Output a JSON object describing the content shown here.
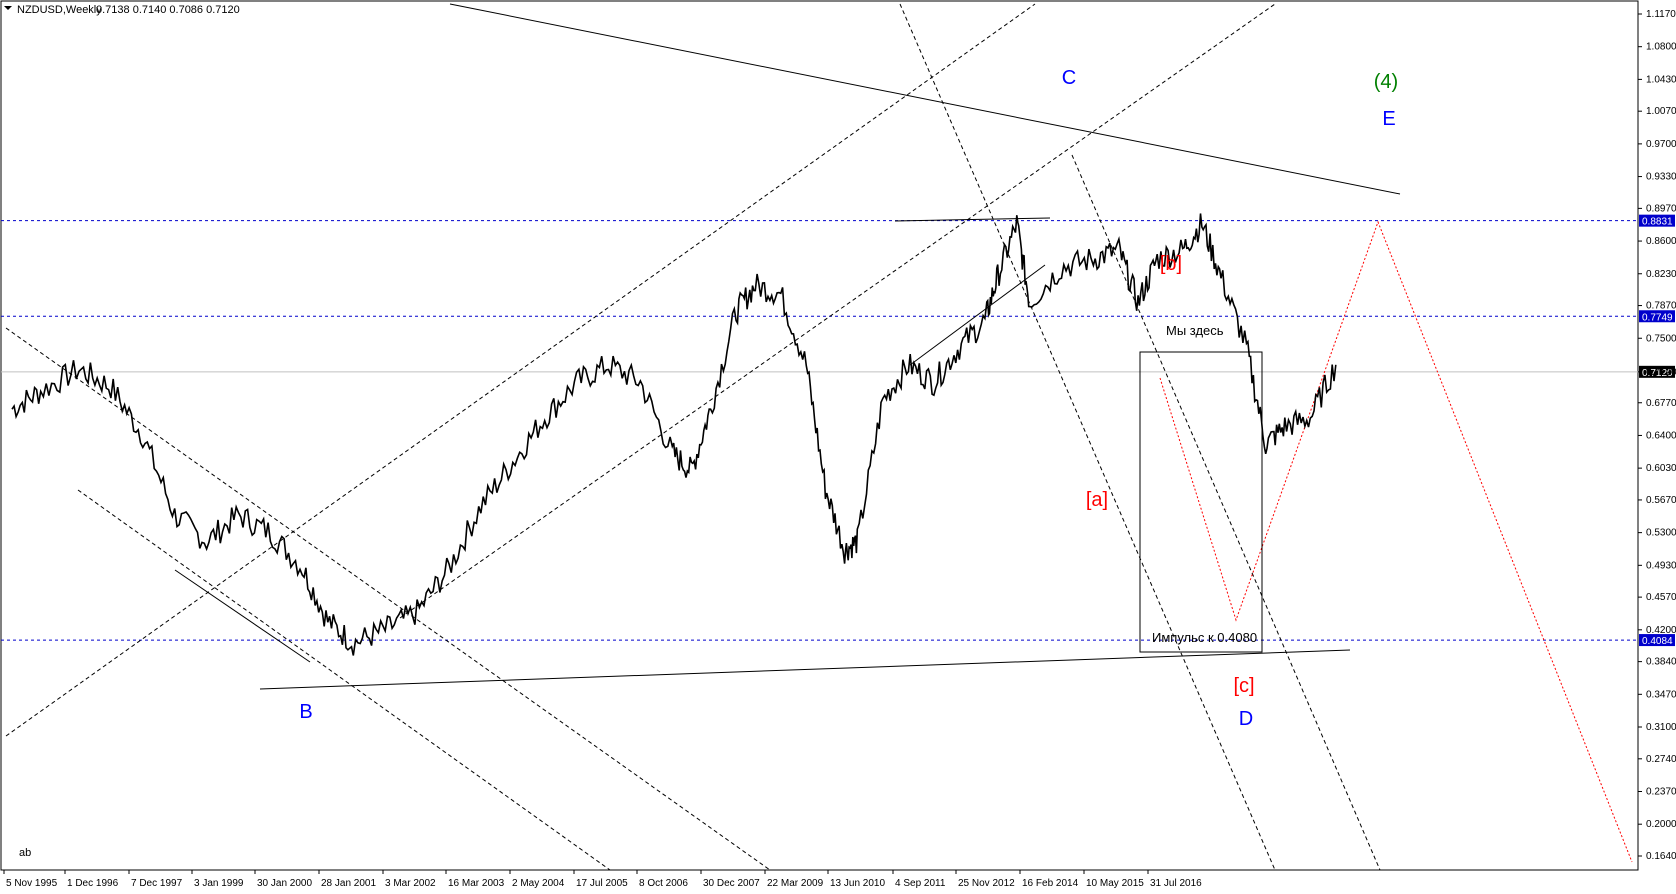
{
  "header": {
    "symbol": "NZDUSD,Weekly",
    "ohlc": "0.7138 0.7140 0.7086 0.7120"
  },
  "footer": {
    "tag": "ab"
  },
  "chart_data": {
    "type": "line",
    "title": "NZDUSD,Weekly",
    "ylim": [
      0.164,
      1.13
    ],
    "y_ticks": [
      "1.1170",
      "1.0800",
      "1.0430",
      "1.0070",
      "0.9700",
      "0.9330",
      "0.8970",
      "0.8600",
      "0.8230",
      "0.7870",
      "0.7500",
      "0.7120",
      "0.6770",
      "0.6400",
      "0.6030",
      "0.5670",
      "0.5300",
      "0.4930",
      "0.4570",
      "0.4200",
      "0.3840",
      "0.3470",
      "0.3100",
      "0.2740",
      "0.2370",
      "0.2000",
      "0.1640"
    ],
    "x_ticks": [
      "5 Nov 1995",
      "1 Dec 1996",
      "7 Dec 1997",
      "3 Jan 1999",
      "30 Jan 2000",
      "28 Jan 2001",
      "3 Mar 2002",
      "16 Mar 2003",
      "2 May 2004",
      "17 Jul 2005",
      "8 Oct 2006",
      "30 Dec 2007",
      "22 Mar 2009",
      "13 Jun 2010",
      "4 Sep 2011",
      "25 Nov 2012",
      "16 Feb 2014",
      "10 May 2015",
      "31 Jul 2016"
    ],
    "price_series": {
      "name": "NZDUSD",
      "x": [
        1995.85,
        1996.3,
        1996.9,
        1997.4,
        1997.9,
        1998.4,
        1998.9,
        1999.4,
        1999.9,
        2000.4,
        2000.8,
        2001.2,
        2001.7,
        2002.2,
        2002.7,
        2003.2,
        2003.7,
        2004.2,
        2004.7,
        2005.2,
        2005.7,
        2006.2,
        2006.5,
        2006.8,
        2007.2,
        2007.5,
        2007.9,
        2008.3,
        2008.6,
        2008.9,
        2009.1,
        2009.5,
        2009.9,
        2010.3,
        2010.7,
        2011.1,
        2011.3,
        2011.6,
        2011.8,
        2012.3,
        2012.8,
        2013.2,
        2013.5,
        2013.8,
        2014.2,
        2014.5,
        2014.8,
        2015.2,
        2015.5,
        2015.8,
        2016.2,
        2016.6
      ],
      "y": [
        0.67,
        0.69,
        0.715,
        0.695,
        0.64,
        0.55,
        0.52,
        0.55,
        0.53,
        0.49,
        0.43,
        0.405,
        0.42,
        0.44,
        0.49,
        0.56,
        0.61,
        0.66,
        0.7,
        0.72,
        0.7,
        0.62,
        0.6,
        0.67,
        0.78,
        0.81,
        0.8,
        0.72,
        0.58,
        0.51,
        0.52,
        0.68,
        0.72,
        0.7,
        0.74,
        0.77,
        0.82,
        0.88,
        0.79,
        0.83,
        0.84,
        0.85,
        0.79,
        0.84,
        0.85,
        0.88,
        0.82,
        0.74,
        0.63,
        0.65,
        0.66,
        0.72
      ]
    },
    "price_levels": [
      {
        "value": 0.8831,
        "label": "0.8831",
        "color": "#0000cc"
      },
      {
        "value": 0.7749,
        "label": "0.7749",
        "color": "#0000cc"
      },
      {
        "value": 0.712,
        "label": "0.7120",
        "color": "#000000"
      },
      {
        "value": 0.4084,
        "label": "0.4084",
        "color": "#0000cc"
      }
    ],
    "wave_labels": [
      {
        "text": "C",
        "color": "#0000ff"
      },
      {
        "text": "(4)",
        "color": "#008000"
      },
      {
        "text": "E",
        "color": "#0000ff"
      },
      {
        "text": "[b]",
        "color": "#ff0000"
      },
      {
        "text": "[a]",
        "color": "#ff0000"
      },
      {
        "text": "B",
        "color": "#0000ff"
      },
      {
        "text": "[c]",
        "color": "#ff0000"
      },
      {
        "text": "D",
        "color": "#0000ff"
      }
    ],
    "annotations": [
      "Мы здесь",
      "Импульс к 0.4080"
    ]
  }
}
